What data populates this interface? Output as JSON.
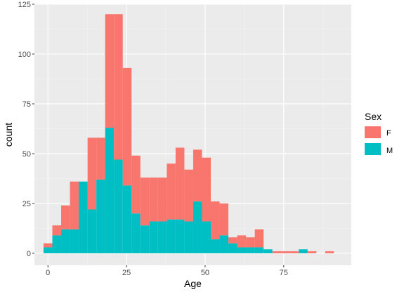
{
  "chart_data": {
    "type": "bar",
    "subtype": "stacked histogram",
    "title": "",
    "xlabel": "Age",
    "ylabel": "count",
    "xlim": [
      -4.3,
      96.5
    ],
    "ylim": [
      -6,
      125
    ],
    "xticks": [
      0,
      25,
      50,
      75
    ],
    "yticks": [
      0,
      25,
      50,
      75,
      100,
      125
    ],
    "grid": true,
    "legend": {
      "title": "Sex",
      "placement": "right",
      "entries": [
        {
          "label": "F",
          "color": "#F8766D"
        },
        {
          "label": "M",
          "color": "#00BFC4"
        }
      ]
    },
    "bin_width": 2.8,
    "bin_starts": [
      -1.4,
      1.4,
      4.2,
      7.0,
      9.8,
      12.6,
      15.4,
      18.2,
      21.0,
      23.8,
      26.6,
      29.4,
      32.2,
      35.0,
      37.8,
      40.6,
      43.4,
      46.2,
      49.0,
      51.8,
      54.6,
      57.4,
      60.2,
      63.0,
      65.8,
      68.6,
      71.4,
      74.2,
      77.0,
      79.8,
      82.6,
      85.4,
      88.2,
      91.0
    ],
    "series": [
      {
        "name": "M",
        "values": [
          3,
          9,
          12,
          12,
          36,
          22,
          37,
          63,
          47,
          34,
          20,
          14,
          16,
          16,
          17,
          17,
          16,
          26,
          16,
          7,
          9,
          5,
          3,
          3,
          3,
          2,
          0,
          0,
          0,
          2,
          0,
          0,
          0,
          0
        ]
      },
      {
        "name": "F",
        "values": [
          2,
          5,
          12,
          24,
          0,
          36,
          21,
          57,
          73,
          59,
          29,
          24,
          22,
          22,
          28,
          36,
          26,
          26,
          32,
          19,
          16,
          3,
          6,
          5,
          9,
          0,
          1,
          1,
          1,
          0,
          1,
          0,
          1,
          0
        ]
      }
    ]
  },
  "colors": {
    "panel_background": "#EBEBEB",
    "grid_major": "#FFFFFF",
    "F": "#F8766D",
    "M": "#00BFC4"
  }
}
